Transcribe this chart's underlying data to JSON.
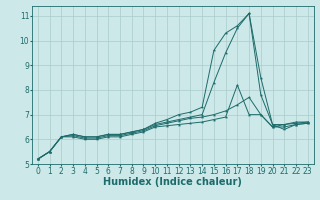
{
  "background_color": "#cce8e8",
  "grid_color": "#aacccc",
  "line_color": "#1e6b6b",
  "marker": "*",
  "marker_size": 2.5,
  "xlabel": "Humidex (Indice chaleur)",
  "xlabel_fontsize": 7,
  "tick_fontsize": 5.5,
  "xlim": [
    -0.5,
    23.5
  ],
  "ylim": [
    5,
    11.4
  ],
  "yticks": [
    5,
    6,
    7,
    8,
    9,
    10,
    11
  ],
  "xticks": [
    0,
    1,
    2,
    3,
    4,
    5,
    6,
    7,
    8,
    9,
    10,
    11,
    12,
    13,
    14,
    15,
    16,
    17,
    18,
    19,
    20,
    21,
    22,
    23
  ],
  "series": [
    [
      5.2,
      5.5,
      6.1,
      6.1,
      6.0,
      6.0,
      6.1,
      6.1,
      6.2,
      6.3,
      6.5,
      6.55,
      6.6,
      6.65,
      6.7,
      6.8,
      6.9,
      8.2,
      7.0,
      7.0,
      6.5,
      6.6,
      6.65,
      6.7
    ],
    [
      5.2,
      5.5,
      6.1,
      6.15,
      6.05,
      6.05,
      6.15,
      6.15,
      6.25,
      6.35,
      6.55,
      6.65,
      6.75,
      6.85,
      6.9,
      7.0,
      7.15,
      7.4,
      7.7,
      7.0,
      6.5,
      6.5,
      6.6,
      6.65
    ],
    [
      5.2,
      5.5,
      6.1,
      6.2,
      6.1,
      6.1,
      6.2,
      6.2,
      6.3,
      6.4,
      6.6,
      6.7,
      6.8,
      6.9,
      7.0,
      8.3,
      9.5,
      10.5,
      11.1,
      7.8,
      6.6,
      6.4,
      6.6,
      6.65
    ],
    [
      5.2,
      5.5,
      6.1,
      6.2,
      6.1,
      6.1,
      6.2,
      6.2,
      6.3,
      6.4,
      6.65,
      6.8,
      7.0,
      7.1,
      7.3,
      9.6,
      10.3,
      10.6,
      11.1,
      8.5,
      6.6,
      6.6,
      6.7,
      6.7
    ]
  ]
}
